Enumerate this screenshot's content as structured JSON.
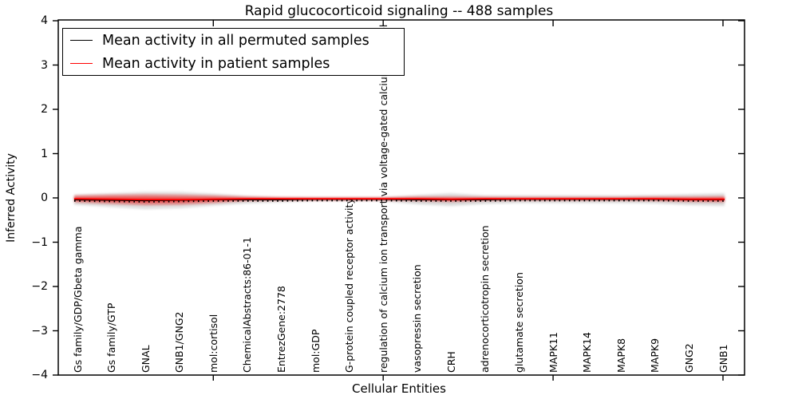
{
  "title": "Rapid glucocorticoid signaling -- 488 samples",
  "axes": {
    "ylabel": "Inferred Activity",
    "xlabel": "Cellular Entities",
    "ytick_labels": [
      "4",
      "3",
      "2",
      "1",
      "0",
      "−1",
      "−2",
      "−3",
      "−4"
    ],
    "ytick_values": [
      4,
      3,
      2,
      1,
      0,
      -1,
      -2,
      -3,
      -4
    ]
  },
  "legend": {
    "items": [
      {
        "label": "Mean activity in all permuted samples",
        "color": "#000000"
      },
      {
        "label": "Mean activity in patient samples",
        "color": "#ff0000"
      }
    ],
    "position": "upper left"
  },
  "chart_data": {
    "type": "line",
    "title": "Rapid glucocorticoid signaling -- 488 samples",
    "xlabel": "Cellular Entities",
    "ylabel": "Inferred Activity",
    "ylim": [
      -4,
      4
    ],
    "grid": false,
    "legend_position": "upper left",
    "categories": [
      "Gs family/GDP/Gbeta gamma",
      "Gs family/GTP",
      "GNAL",
      "GNB1/GNG2",
      "mol:cortisol",
      "ChemicalAbstracts:86-01-1",
      "EntrezGene:2778",
      "mol:GDP",
      "G-protein coupled receptor activity",
      "regulation of calcium ion transport via voltage-gated calcium channel",
      "vasopressin secretion",
      "CRH",
      "adrenocorticotropin secretion",
      "glutamate secretion",
      "MAPK11",
      "MAPK14",
      "MAPK8",
      "MAPK9",
      "GNG2",
      "GNB1"
    ],
    "series": [
      {
        "name": "Mean activity in all permuted samples",
        "color": "#000000",
        "values": [
          -0.04,
          -0.05,
          -0.06,
          -0.05,
          -0.04,
          -0.04,
          -0.04,
          -0.03,
          -0.03,
          -0.03,
          -0.04,
          -0.04,
          -0.04,
          -0.03,
          -0.03,
          -0.03,
          -0.03,
          -0.03,
          -0.04,
          -0.04
        ]
      },
      {
        "name": "Mean activity in patient samples",
        "color": "#ff0000",
        "values": [
          -0.02,
          -0.03,
          -0.04,
          -0.04,
          -0.03,
          -0.02,
          -0.02,
          -0.02,
          -0.02,
          -0.02,
          -0.02,
          -0.03,
          -0.02,
          -0.02,
          -0.02,
          -0.02,
          -0.02,
          -0.02,
          -0.03,
          -0.03
        ]
      }
    ],
    "bands": [
      {
        "name": "permuted-samples-spread",
        "color": "#a0a0a0",
        "center_series": 0,
        "half_widths": [
          0.12,
          0.16,
          0.2,
          0.19,
          0.14,
          0.09,
          0.06,
          0.05,
          0.05,
          0.05,
          0.11,
          0.15,
          0.1,
          0.09,
          0.09,
          0.09,
          0.09,
          0.1,
          0.13,
          0.15
        ]
      },
      {
        "name": "patient-samples-spread",
        "color": "#ff0000",
        "center_series": 1,
        "half_widths": [
          0.08,
          0.11,
          0.13,
          0.12,
          0.09,
          0.05,
          0.04,
          0.035,
          0.035,
          0.035,
          0.05,
          0.06,
          0.045,
          0.04,
          0.04,
          0.04,
          0.04,
          0.05,
          0.06,
          0.07
        ]
      }
    ]
  }
}
